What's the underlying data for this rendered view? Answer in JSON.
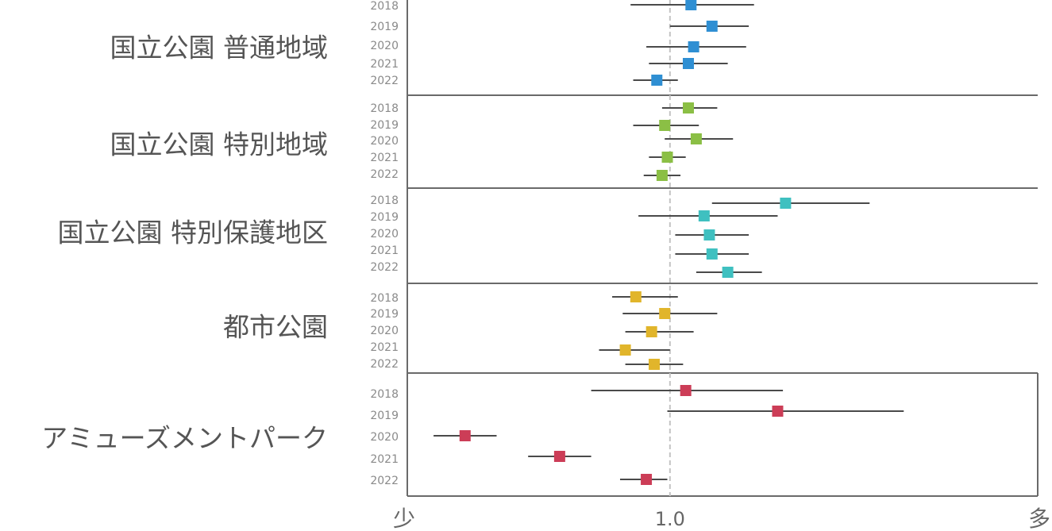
{
  "chart_data": {
    "type": "forest",
    "xlim": [
      0.0,
      2.4
    ],
    "reference_line": 1.0,
    "x_axis": {
      "left_label": "少",
      "right_label": "多",
      "tick_label": "1.0"
    },
    "groups": [
      {
        "name": "国立公園 普通地域",
        "color": "#2f8fd3",
        "points": [
          {
            "year": "2018",
            "estimate": 1.08,
            "lower": 0.85,
            "upper": 1.32
          },
          {
            "year": "2019",
            "estimate": 1.16,
            "lower": 1.0,
            "upper": 1.3
          },
          {
            "year": "2020",
            "estimate": 1.09,
            "lower": 0.91,
            "upper": 1.29
          },
          {
            "year": "2021",
            "estimate": 1.07,
            "lower": 0.92,
            "upper": 1.22
          },
          {
            "year": "2022",
            "estimate": 0.95,
            "lower": 0.86,
            "upper": 1.03
          }
        ]
      },
      {
        "name": "国立公園 特別地域",
        "color": "#8bbf45",
        "points": [
          {
            "year": "2018",
            "estimate": 1.07,
            "lower": 0.97,
            "upper": 1.18
          },
          {
            "year": "2019",
            "estimate": 0.98,
            "lower": 0.86,
            "upper": 1.11
          },
          {
            "year": "2020",
            "estimate": 1.1,
            "lower": 0.98,
            "upper": 1.24
          },
          {
            "year": "2021",
            "estimate": 0.99,
            "lower": 0.92,
            "upper": 1.06
          },
          {
            "year": "2022",
            "estimate": 0.97,
            "lower": 0.9,
            "upper": 1.04
          }
        ]
      },
      {
        "name": "国立公園 特別保護地区",
        "color": "#3fc0c0",
        "points": [
          {
            "year": "2018",
            "estimate": 1.44,
            "lower": 1.16,
            "upper": 1.76
          },
          {
            "year": "2019",
            "estimate": 1.13,
            "lower": 0.88,
            "upper": 1.41
          },
          {
            "year": "2020",
            "estimate": 1.15,
            "lower": 1.02,
            "upper": 1.3
          },
          {
            "year": "2021",
            "estimate": 1.16,
            "lower": 1.02,
            "upper": 1.3
          },
          {
            "year": "2022",
            "estimate": 1.22,
            "lower": 1.1,
            "upper": 1.35
          }
        ]
      },
      {
        "name": "都市公園",
        "color": "#e1b52b",
        "points": [
          {
            "year": "2018",
            "estimate": 0.87,
            "lower": 0.78,
            "upper": 1.03
          },
          {
            "year": "2019",
            "estimate": 0.98,
            "lower": 0.82,
            "upper": 1.18
          },
          {
            "year": "2020",
            "estimate": 0.93,
            "lower": 0.83,
            "upper": 1.09
          },
          {
            "year": "2021",
            "estimate": 0.83,
            "lower": 0.73,
            "upper": 1.0
          },
          {
            "year": "2022",
            "estimate": 0.94,
            "lower": 0.83,
            "upper": 1.05
          }
        ]
      },
      {
        "name": "アミューズメントパーク",
        "color": "#cc3d57",
        "points": [
          {
            "year": "2018",
            "estimate": 1.06,
            "lower": 0.7,
            "upper": 1.43
          },
          {
            "year": "2019",
            "estimate": 1.41,
            "lower": 0.99,
            "upper": 1.89
          },
          {
            "year": "2020",
            "estimate": 0.22,
            "lower": 0.1,
            "upper": 0.34
          },
          {
            "year": "2021",
            "estimate": 0.58,
            "lower": 0.46,
            "upper": 0.7
          },
          {
            "year": "2022",
            "estimate": 0.91,
            "lower": 0.81,
            "upper": 0.99
          }
        ]
      }
    ]
  }
}
